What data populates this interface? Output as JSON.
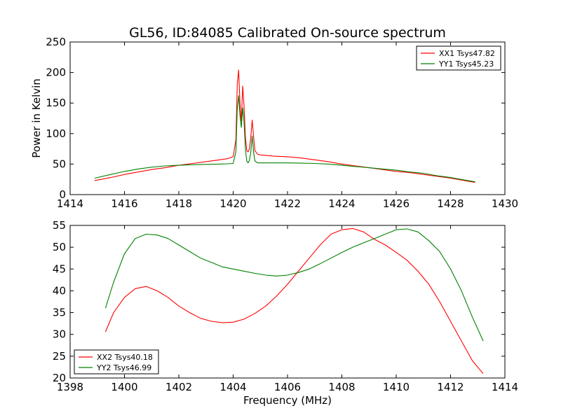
{
  "chart_data": [
    {
      "type": "line",
      "title": "GL56, ID:84085 Calibrated On-source spectrum",
      "xlabel": "",
      "ylabel": "Power in Kelvin",
      "xlim": [
        1414,
        1430
      ],
      "ylim": [
        0,
        250
      ],
      "xticks": [
        1414,
        1416,
        1418,
        1420,
        1422,
        1424,
        1426,
        1428,
        1430
      ],
      "yticks": [
        0,
        50,
        100,
        150,
        200,
        250
      ],
      "legend_position": "top-right",
      "series": [
        {
          "name": "XX1 Tsys47.82",
          "color": "#ff0000",
          "x": [
            1414.9,
            1415.5,
            1416,
            1416.5,
            1417,
            1417.5,
            1418,
            1418.5,
            1419,
            1419.5,
            1419.8,
            1420.0,
            1420.1,
            1420.15,
            1420.2,
            1420.25,
            1420.3,
            1420.35,
            1420.4,
            1420.45,
            1420.5,
            1420.55,
            1420.6,
            1420.65,
            1420.7,
            1420.75,
            1420.8,
            1420.9,
            1421.0,
            1421.5,
            1422,
            1422.5,
            1423,
            1423.5,
            1424,
            1424.5,
            1425,
            1425.5,
            1426,
            1426.5,
            1427,
            1427.5,
            1428,
            1428.5,
            1428.9
          ],
          "y": [
            23,
            28,
            33,
            37,
            41,
            44,
            48,
            51,
            54,
            57,
            59,
            62,
            90,
            180,
            204,
            150,
            120,
            178,
            145,
            95,
            72,
            70,
            75,
            95,
            122,
            95,
            72,
            66,
            65,
            63,
            62,
            60,
            57,
            54,
            50,
            47,
            44,
            41,
            38,
            36,
            33,
            30,
            27,
            23,
            20
          ]
        },
        {
          "name": "YY1 Tsys45.23",
          "color": "#008000",
          "x": [
            1414.9,
            1415.5,
            1416,
            1416.5,
            1417,
            1417.5,
            1418,
            1418.5,
            1419,
            1419.5,
            1419.8,
            1420.0,
            1420.1,
            1420.15,
            1420.2,
            1420.25,
            1420.3,
            1420.35,
            1420.4,
            1420.45,
            1420.5,
            1420.55,
            1420.6,
            1420.65,
            1420.7,
            1420.75,
            1420.8,
            1420.9,
            1421.0,
            1421.5,
            1422,
            1422.5,
            1423,
            1423.5,
            1424,
            1424.5,
            1425,
            1425.5,
            1426,
            1426.5,
            1427,
            1427.5,
            1428,
            1428.5,
            1428.9
          ],
          "y": [
            27,
            33,
            38,
            42,
            45,
            47,
            48,
            49,
            49.5,
            50,
            50.5,
            51,
            70,
            140,
            162,
            130,
            110,
            142,
            120,
            75,
            55,
            52,
            56,
            70,
            96,
            70,
            55,
            52,
            52,
            52,
            52,
            51.5,
            51,
            50,
            48,
            46,
            44,
            42,
            40,
            37,
            35,
            31,
            28,
            24,
            21
          ]
        }
      ]
    },
    {
      "type": "line",
      "title": "",
      "xlabel": "Frequency (MHz)",
      "ylabel": "",
      "xlim": [
        1398,
        1414
      ],
      "ylim": [
        20,
        55
      ],
      "xticks": [
        1398,
        1400,
        1402,
        1404,
        1406,
        1408,
        1410,
        1412,
        1414
      ],
      "yticks": [
        20,
        25,
        30,
        35,
        40,
        45,
        50,
        55
      ],
      "legend_position": "bottom-left",
      "series": [
        {
          "name": "XX2 Tsys40.18",
          "color": "#ff0000",
          "x": [
            1399.3,
            1399.6,
            1400.0,
            1400.4,
            1400.8,
            1401.2,
            1401.6,
            1402.0,
            1402.4,
            1402.8,
            1403.2,
            1403.6,
            1404.0,
            1404.4,
            1404.8,
            1405.2,
            1405.6,
            1406.0,
            1406.4,
            1406.8,
            1407.2,
            1407.6,
            1408.0,
            1408.4,
            1408.8,
            1409.2,
            1409.6,
            1410.0,
            1410.4,
            1410.8,
            1411.2,
            1411.6,
            1412.0,
            1412.4,
            1412.8,
            1413.2
          ],
          "y": [
            30.6,
            35,
            38.5,
            40.5,
            41,
            40,
            38.5,
            36.5,
            35,
            33.7,
            33,
            32.7,
            32.8,
            33.5,
            34.8,
            36.5,
            38.8,
            41.5,
            44.5,
            47.5,
            50.5,
            53,
            54,
            54.3,
            53.5,
            51.8,
            50.5,
            48.8,
            47,
            44.5,
            41.5,
            37.5,
            33,
            28.5,
            24,
            21
          ]
        },
        {
          "name": "YY2 Tsys46.99",
          "color": "#008000",
          "x": [
            1399.3,
            1399.6,
            1400.0,
            1400.4,
            1400.8,
            1401.2,
            1401.6,
            1402.0,
            1402.4,
            1402.8,
            1403.2,
            1403.6,
            1404.0,
            1404.4,
            1404.8,
            1405.2,
            1405.6,
            1406.0,
            1406.4,
            1406.8,
            1407.2,
            1407.6,
            1408.0,
            1408.4,
            1408.8,
            1409.2,
            1409.6,
            1410.0,
            1410.4,
            1410.8,
            1411.2,
            1411.6,
            1412.0,
            1412.4,
            1412.8,
            1413.2
          ],
          "y": [
            36,
            42,
            48.5,
            52,
            53,
            52.8,
            52,
            50.5,
            49,
            47.5,
            46.5,
            45.5,
            45,
            44.5,
            44,
            43.6,
            43.4,
            43.6,
            44.2,
            45,
            46.2,
            47.5,
            48.8,
            50,
            51,
            52,
            53,
            54,
            54.2,
            53.5,
            51.5,
            49,
            45,
            40,
            34,
            28.5
          ]
        }
      ]
    }
  ]
}
